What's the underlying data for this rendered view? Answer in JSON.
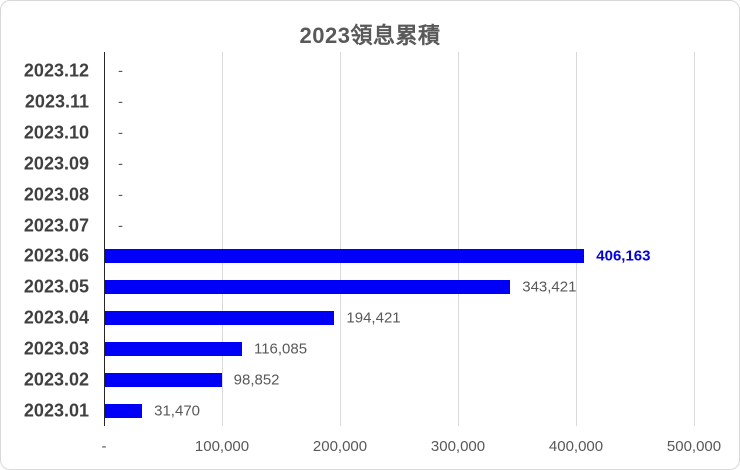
{
  "title": "2023領息累積",
  "chart_data": {
    "type": "bar",
    "orientation": "horizontal",
    "title": "2023領息累積",
    "categories": [
      "2023.12",
      "2023.11",
      "2023.10",
      "2023.09",
      "2023.08",
      "2023.07",
      "2023.06",
      "2023.05",
      "2023.04",
      "2023.03",
      "2023.02",
      "2023.01"
    ],
    "values": [
      0,
      0,
      0,
      0,
      0,
      0,
      406163,
      343421,
      194421,
      116085,
      98852,
      31470
    ],
    "value_labels": [
      "-",
      "-",
      "-",
      "-",
      "-",
      "-",
      "406,163",
      "343,421",
      "194,421",
      "116,085",
      "98,852",
      "31,470"
    ],
    "emphasized_index": 6,
    "x_ticks": [
      "-",
      "100,000",
      "200,000",
      "300,000",
      "400,000",
      "500,000"
    ],
    "x_tick_values": [
      0,
      100000,
      200000,
      300000,
      400000,
      500000
    ],
    "xlim": [
      0,
      500000
    ],
    "grid": true,
    "legend": "none",
    "colors": {
      "bar": "#0000f8",
      "emphasized_label": "#0000e0",
      "value_label": "#595959",
      "category_label": "#404040",
      "axis_line": "#262626",
      "gridline": "#d9d9d9",
      "title": "#595959"
    }
  }
}
